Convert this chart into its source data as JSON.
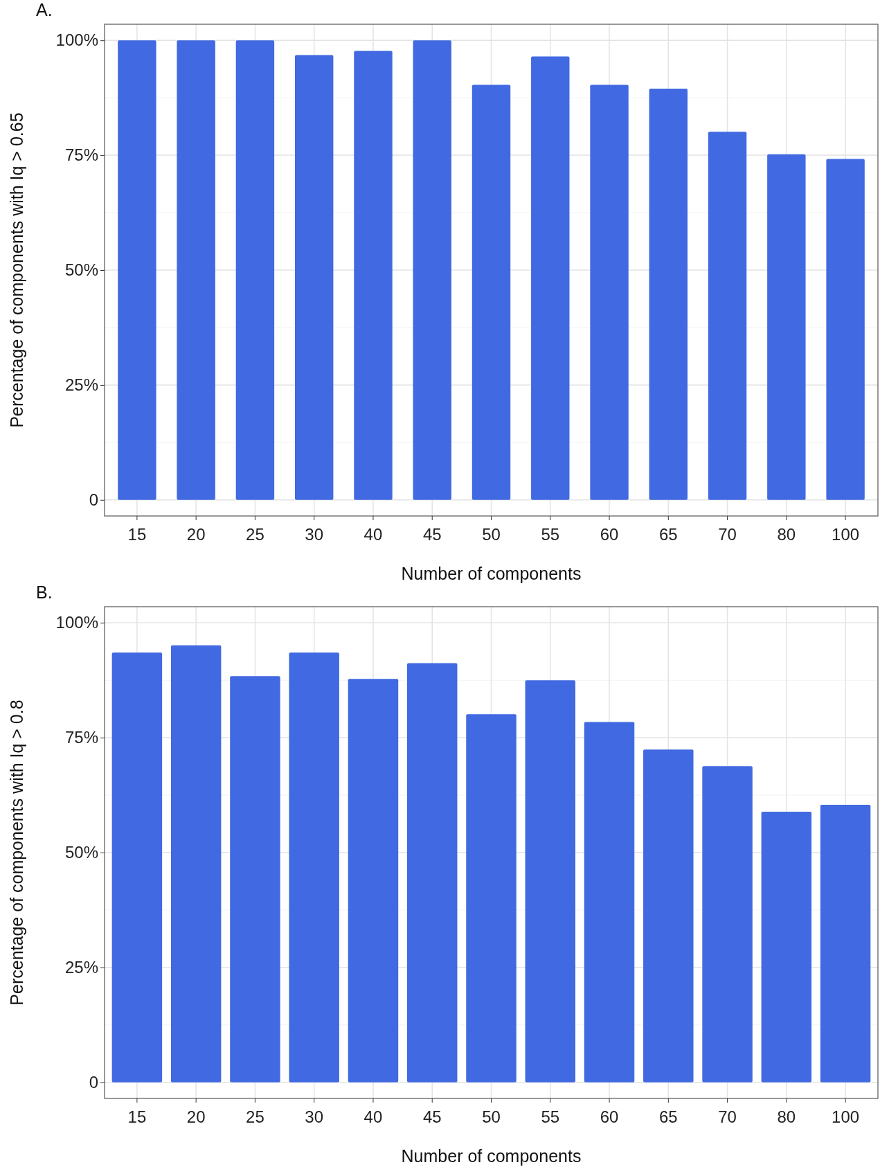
{
  "chart_data": [
    {
      "type": "bar",
      "title": "A.",
      "xlabel": "Number of components",
      "ylabel": "Percentage of components with Iq > 0.65",
      "categories": [
        "15",
        "20",
        "25",
        "30",
        "40",
        "45",
        "50",
        "55",
        "60",
        "65",
        "70",
        "80",
        "100"
      ],
      "values": [
        100,
        100,
        100,
        96.8,
        97.7,
        100,
        90.3,
        96.5,
        90.3,
        89.5,
        80.1,
        75.2,
        74.2
      ],
      "color": "#4169e1",
      "ylim": [
        -3.5,
        103.5
      ],
      "yticks": [
        {
          "value": 0,
          "label": "0"
        },
        {
          "value": 25,
          "label": "25%"
        },
        {
          "value": 50,
          "label": "50%"
        },
        {
          "value": 75,
          "label": "75%"
        },
        {
          "value": 100,
          "label": "100%"
        }
      ],
      "grid": true
    },
    {
      "type": "bar",
      "title": "B.",
      "xlabel": "Number of components",
      "ylabel": "Percentage of components with Iq > 0.8",
      "categories": [
        "15",
        "20",
        "25",
        "30",
        "40",
        "45",
        "50",
        "55",
        "60",
        "65",
        "70",
        "80",
        "100"
      ],
      "values": [
        93.5,
        95.1,
        88.4,
        93.5,
        87.8,
        91.2,
        80.1,
        87.5,
        78.4,
        72.4,
        68.8,
        58.9,
        60.4
      ],
      "color": "#4169e1",
      "ylim": [
        -3.5,
        103.5
      ],
      "yticks": [
        {
          "value": 0,
          "label": "0"
        },
        {
          "value": 25,
          "label": "25%"
        },
        {
          "value": 50,
          "label": "50%"
        },
        {
          "value": 75,
          "label": "75%"
        },
        {
          "value": 100,
          "label": "100%"
        }
      ],
      "grid": true
    }
  ]
}
